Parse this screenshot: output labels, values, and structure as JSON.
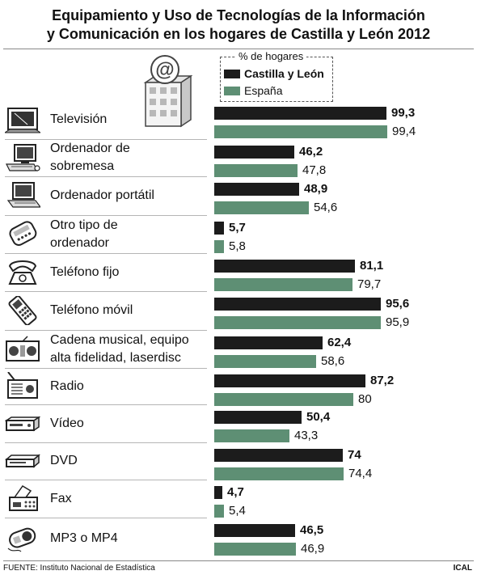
{
  "title": {
    "line1": "Equipamiento y Uso de Tecnologías de la Información",
    "line2": "y Comunicación en los hogares de Castilla y León 2012"
  },
  "legend": {
    "title": "% de hogares",
    "items": [
      {
        "label": "Castilla y León",
        "color": "#1c1c1c"
      },
      {
        "label": "España",
        "color": "#5e8f74"
      }
    ]
  },
  "colors": {
    "castilla": "#1c1c1c",
    "espana": "#5e8f74",
    "separator": "#b5b5b5"
  },
  "icons": [
    "television-icon",
    "desktop-computer-icon",
    "laptop-icon",
    "other-computer-icon",
    "landline-phone-icon",
    "mobile-phone-icon",
    "stereo-system-icon",
    "radio-icon",
    "vcr-icon",
    "dvd-player-icon",
    "fax-icon",
    "mp3-player-icon"
  ],
  "chart_data": {
    "type": "bar",
    "orientation": "horizontal",
    "unit": "% de hogares",
    "categories": [
      [
        "Televisión"
      ],
      [
        "Ordenador de",
        "sobremesa"
      ],
      [
        "Ordenador portátil"
      ],
      [
        "Otro tipo de",
        "ordenador"
      ],
      [
        "Teléfono fijo"
      ],
      [
        "Teléfono móvil"
      ],
      [
        "Cadena musical, equipo",
        "alta fidelidad, laserdisc"
      ],
      [
        "Radio"
      ],
      [
        "Vídeo"
      ],
      [
        "DVD"
      ],
      [
        "Fax"
      ],
      [
        "MP3 o MP4"
      ]
    ],
    "series": [
      {
        "name": "Castilla y León",
        "values": [
          99.3,
          46.2,
          48.9,
          5.7,
          81.1,
          95.6,
          62.4,
          87.2,
          50.4,
          74,
          4.7,
          46.5
        ],
        "labels": [
          "99,3",
          "46,2",
          "48,9",
          "5,7",
          "81,1",
          "95,6",
          "62,4",
          "87,2",
          "50,4",
          "74",
          "4,7",
          "46,5"
        ]
      },
      {
        "name": "España",
        "values": [
          99.4,
          47.8,
          54.6,
          5.8,
          79.7,
          95.9,
          58.6,
          80,
          43.3,
          74.4,
          5.4,
          46.9
        ],
        "labels": [
          "99,4",
          "47,8",
          "54,6",
          "5,8",
          "79,7",
          "95,9",
          "58,6",
          "80",
          "43,3",
          "74,4",
          "5,4",
          "46,9"
        ]
      }
    ],
    "xlim": [
      0,
      100
    ],
    "grid": false,
    "legend_position": "top"
  },
  "footer": {
    "source": "FUENTE: Instituto Nacional de Estadística",
    "credit": "ICAL"
  }
}
